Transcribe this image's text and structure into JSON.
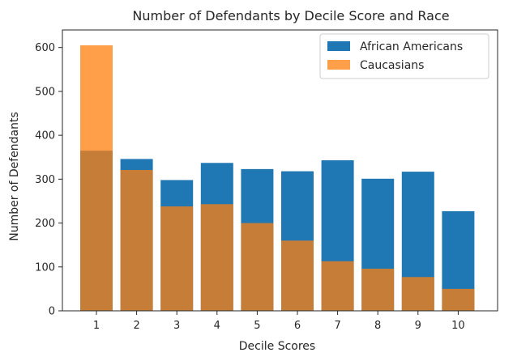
{
  "chart_data": {
    "type": "bar",
    "title": "Number of Defendants by Decile Score and Race",
    "xlabel": "Decile Scores",
    "ylabel": "Number of Defendants",
    "categories": [
      "1",
      "2",
      "3",
      "4",
      "5",
      "6",
      "7",
      "8",
      "9",
      "10"
    ],
    "ylim": [
      0,
      640
    ],
    "yticks": [
      0,
      100,
      200,
      300,
      400,
      500,
      600
    ],
    "series": [
      {
        "name": "African Americans",
        "color": "#1f77b4",
        "values": [
          365,
          346,
          298,
          337,
          323,
          318,
          343,
          301,
          317,
          227
        ]
      },
      {
        "name": "Caucasians",
        "color": "#ff7f0e",
        "opacity": 0.75,
        "values": [
          605,
          321,
          238,
          243,
          200,
          160,
          113,
          96,
          77,
          50
        ]
      }
    ],
    "legend_position": "top-right",
    "grid": false
  }
}
